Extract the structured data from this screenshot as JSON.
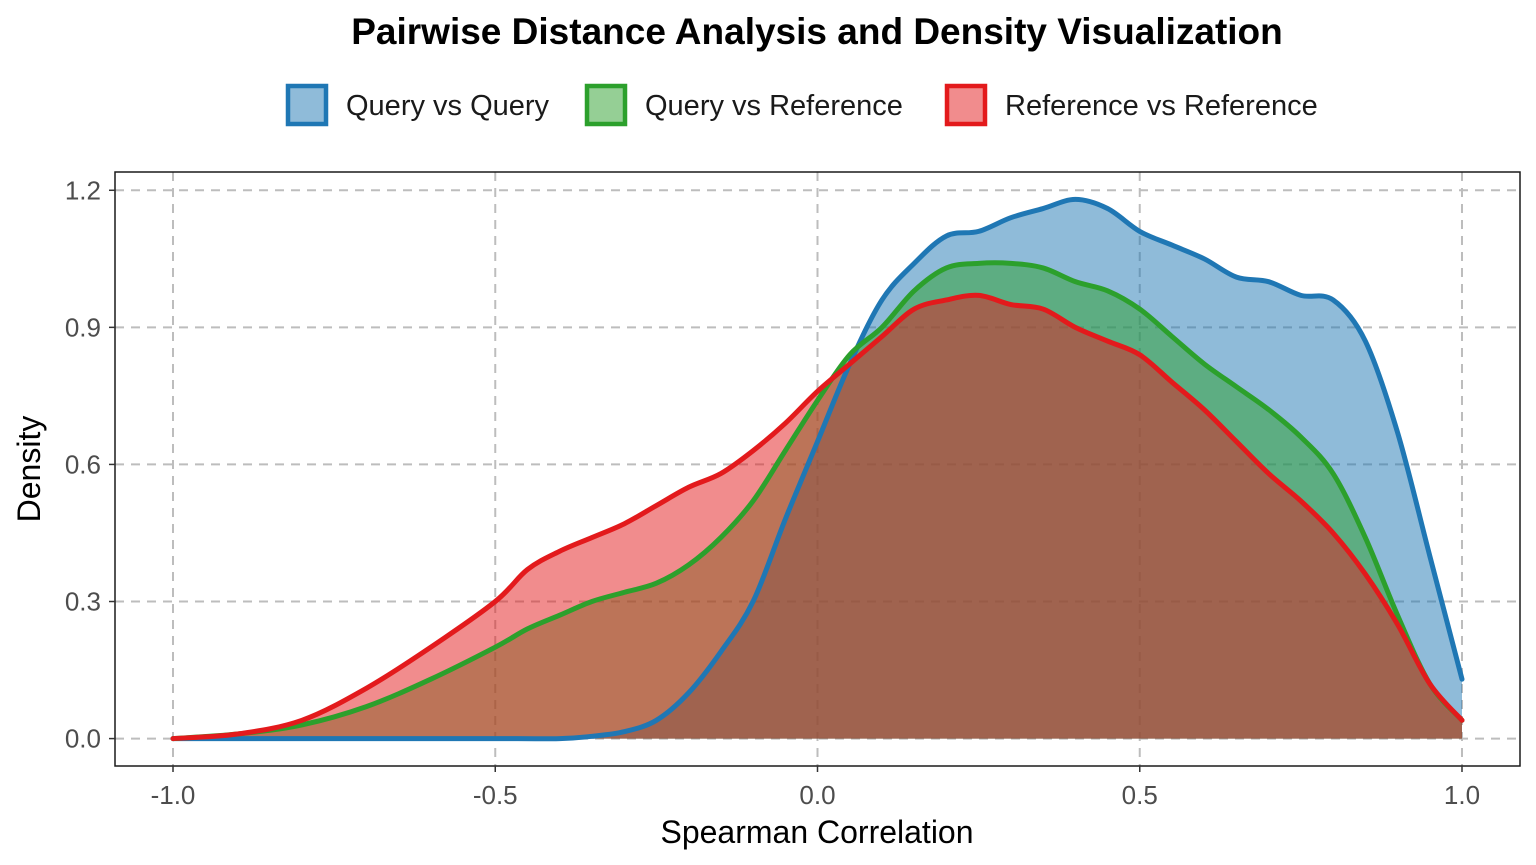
{
  "chart_data": {
    "type": "area",
    "title": "Pairwise Distance Analysis and Density Visualization",
    "xlabel": "Spearman Correlation",
    "ylabel": "Density",
    "xlim": [
      -1.09,
      1.09
    ],
    "ylim": [
      -0.06,
      1.24
    ],
    "x_ticks": [
      -1.0,
      -0.5,
      0.0,
      0.5,
      1.0
    ],
    "x_tick_labels": [
      "-1.0",
      "-0.5",
      "0.0",
      "0.5",
      "1.0"
    ],
    "y_ticks": [
      0.0,
      0.3,
      0.6,
      0.9,
      1.2
    ],
    "y_tick_labels": [
      "0.0",
      "0.3",
      "0.6",
      "0.9",
      "1.2"
    ],
    "grid": true,
    "legend_position": "top",
    "series": [
      {
        "name": "Query vs Query",
        "color": "#1f77b4",
        "fill": "#1f77b4",
        "fill_opacity": 0.5,
        "x": [
          -1.0,
          -0.9,
          -0.8,
          -0.7,
          -0.6,
          -0.5,
          -0.4,
          -0.35,
          -0.3,
          -0.25,
          -0.2,
          -0.15,
          -0.1,
          -0.05,
          0.0,
          0.05,
          0.1,
          0.15,
          0.2,
          0.25,
          0.3,
          0.35,
          0.4,
          0.45,
          0.5,
          0.55,
          0.6,
          0.65,
          0.7,
          0.75,
          0.8,
          0.85,
          0.9,
          0.95,
          1.0
        ],
        "y": [
          0.0,
          0.0,
          0.0,
          0.0,
          0.0,
          0.0,
          0.0,
          0.005,
          0.015,
          0.04,
          0.1,
          0.19,
          0.3,
          0.48,
          0.65,
          0.82,
          0.96,
          1.04,
          1.1,
          1.11,
          1.14,
          1.16,
          1.18,
          1.16,
          1.11,
          1.08,
          1.05,
          1.01,
          1.0,
          0.97,
          0.96,
          0.87,
          0.67,
          0.4,
          0.13
        ]
      },
      {
        "name": "Query vs Reference",
        "color": "#2ca02c",
        "fill": "#2ca02c",
        "fill_opacity": 0.5,
        "x": [
          -1.0,
          -0.9,
          -0.8,
          -0.7,
          -0.6,
          -0.5,
          -0.45,
          -0.4,
          -0.35,
          -0.3,
          -0.25,
          -0.2,
          -0.15,
          -0.1,
          -0.05,
          0.0,
          0.05,
          0.1,
          0.15,
          0.2,
          0.25,
          0.3,
          0.35,
          0.4,
          0.45,
          0.5,
          0.55,
          0.6,
          0.65,
          0.7,
          0.75,
          0.8,
          0.85,
          0.9,
          0.95,
          1.0
        ],
        "y": [
          0.0,
          0.01,
          0.03,
          0.07,
          0.13,
          0.2,
          0.24,
          0.27,
          0.3,
          0.32,
          0.34,
          0.38,
          0.44,
          0.52,
          0.63,
          0.74,
          0.84,
          0.9,
          0.98,
          1.03,
          1.04,
          1.04,
          1.03,
          1.0,
          0.98,
          0.94,
          0.88,
          0.82,
          0.77,
          0.72,
          0.66,
          0.58,
          0.44,
          0.27,
          0.12,
          0.04
        ]
      },
      {
        "name": "Reference vs Reference",
        "color": "#e31a1c",
        "fill": "#e31a1c",
        "fill_opacity": 0.5,
        "x": [
          -1.0,
          -0.9,
          -0.8,
          -0.7,
          -0.6,
          -0.5,
          -0.45,
          -0.4,
          -0.35,
          -0.3,
          -0.25,
          -0.2,
          -0.15,
          -0.1,
          -0.05,
          0.0,
          0.05,
          0.1,
          0.15,
          0.2,
          0.25,
          0.3,
          0.35,
          0.4,
          0.45,
          0.5,
          0.55,
          0.6,
          0.65,
          0.7,
          0.75,
          0.8,
          0.85,
          0.9,
          0.95,
          1.0
        ],
        "y": [
          0.0,
          0.01,
          0.04,
          0.11,
          0.2,
          0.3,
          0.37,
          0.41,
          0.44,
          0.47,
          0.51,
          0.55,
          0.58,
          0.63,
          0.69,
          0.76,
          0.82,
          0.88,
          0.94,
          0.96,
          0.97,
          0.95,
          0.94,
          0.9,
          0.87,
          0.84,
          0.78,
          0.72,
          0.65,
          0.58,
          0.52,
          0.45,
          0.36,
          0.25,
          0.12,
          0.04
        ]
      }
    ]
  }
}
